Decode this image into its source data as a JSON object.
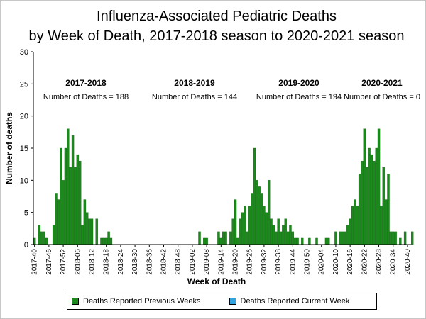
{
  "chart_data": {
    "type": "bar",
    "title": [
      "Influenza-Associated Pediatric Deaths",
      "by Week of Death, 2017-2018 season to 2020-2021 season"
    ],
    "xlabel": "Week of Death",
    "ylabel": "Number of deaths",
    "ylim": [
      0,
      30
    ],
    "yticks": [
      0,
      5,
      10,
      15,
      20,
      25,
      30
    ],
    "x_start_week": "2017-40",
    "x_tick_labels": [
      "2017-40",
      "2017-46",
      "2017-52",
      "2018-06",
      "2018-12",
      "2018-18",
      "2018-24",
      "2018-30",
      "2018-36",
      "2018-42",
      "2018-48",
      "2019-02",
      "2019-08",
      "2019-14",
      "2019-20",
      "2019-26",
      "2019-32",
      "2019-38",
      "2019-44",
      "2019-50",
      "2020-04",
      "2020-10",
      "2020-16",
      "2020-22",
      "2020-28",
      "2020-34",
      "2020-40"
    ],
    "series": [
      {
        "name": "Deaths Reported Previous Weeks",
        "color": "#1a8a1a",
        "values": [
          1,
          0,
          3,
          2,
          2,
          1,
          0,
          0,
          3,
          8,
          7,
          15,
          10,
          15,
          18,
          12,
          17,
          12,
          14,
          13,
          3,
          7,
          5,
          4,
          4,
          0,
          4,
          0,
          1,
          1,
          1,
          2,
          1,
          0,
          0,
          0,
          0,
          0,
          0,
          0,
          0,
          0,
          0,
          0,
          0,
          0,
          0,
          0,
          0,
          0,
          0,
          0,
          0,
          0,
          0,
          0,
          0,
          0,
          0,
          0,
          0,
          0,
          0,
          0,
          0,
          0,
          0,
          0,
          0,
          2,
          0,
          1,
          1,
          0,
          0,
          0,
          0,
          2,
          1,
          2,
          2,
          0,
          2,
          4,
          7,
          1,
          4,
          5,
          6,
          2,
          6,
          8,
          15,
          10,
          9,
          8,
          6,
          5,
          10,
          4,
          3,
          2,
          4,
          2,
          3,
          4,
          2,
          3,
          2,
          1,
          1,
          0,
          1,
          0,
          0,
          1,
          0,
          0,
          1,
          0,
          0,
          0,
          1,
          1,
          0,
          0,
          2,
          0,
          2,
          2,
          2,
          3,
          4,
          6,
          7,
          6,
          11,
          13,
          18,
          12,
          15,
          14,
          13,
          15,
          18,
          6,
          12,
          7,
          11,
          2,
          2,
          2,
          0,
          1,
          0,
          2,
          0,
          0,
          2,
          0,
          0,
          0,
          0,
          0,
          0,
          0,
          0,
          0,
          0,
          0,
          0,
          0,
          0,
          0,
          0,
          0,
          0,
          0,
          0,
          0,
          0,
          0,
          0,
          0,
          0,
          0,
          0,
          0,
          0,
          0,
          0,
          0,
          0,
          0,
          0,
          0,
          0,
          0,
          0,
          0,
          0,
          0,
          0,
          0,
          0
        ]
      },
      {
        "name": "Deaths Reported Current Week",
        "color": "#2fa4e0",
        "values": []
      }
    ],
    "annotations": [
      {
        "season": "2017-2018",
        "text": "Number of Deaths = 188"
      },
      {
        "season": "2018-2019",
        "text": "Number of Deaths = 144"
      },
      {
        "season": "2019-2020",
        "text": "Number of Deaths = 194"
      },
      {
        "season": "2020-2021",
        "text": "Number of Deaths = 0"
      }
    ],
    "legend_position": "bottom",
    "grid": false
  },
  "legend": {
    "items": [
      {
        "label": "Deaths Reported Previous Weeks",
        "color": "#1a8a1a"
      },
      {
        "label": "Deaths Reported Current Week",
        "color": "#2fa4e0"
      }
    ]
  }
}
